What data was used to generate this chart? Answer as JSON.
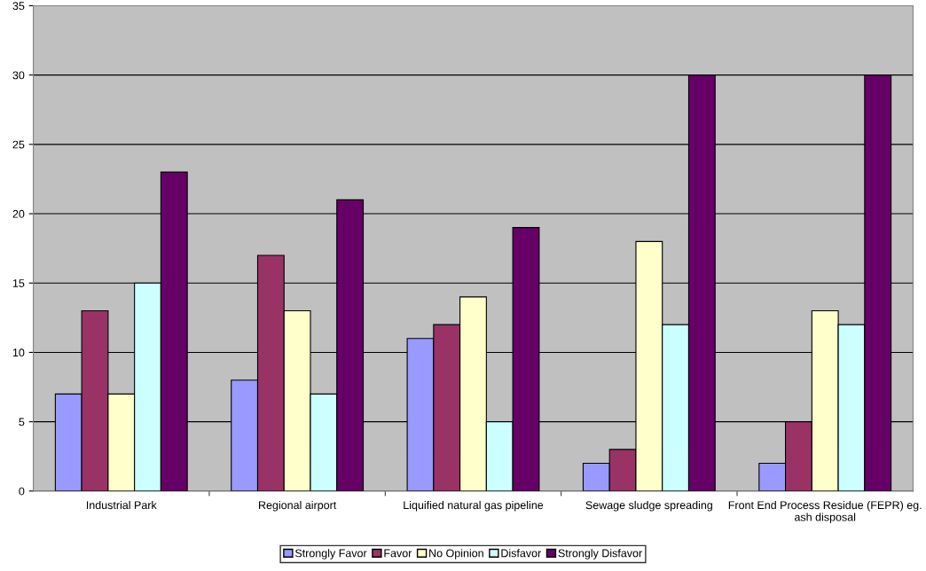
{
  "chart_data": {
    "type": "bar",
    "categories": [
      "Industrial Park",
      "Regional airport",
      "Liquified natural gas pipeline",
      "Sewage sludge spreading",
      "Front End Process Residue (FEPR) eg. ash disposal"
    ],
    "series": [
      {
        "name": "Strongly Favor",
        "color": "#9999ff",
        "values": [
          7,
          8,
          11,
          2,
          2
        ]
      },
      {
        "name": "Favor",
        "color": "#993366",
        "values": [
          13,
          17,
          12,
          3,
          5
        ]
      },
      {
        "name": "No Opinion",
        "color": "#ffffcc",
        "values": [
          7,
          13,
          14,
          18,
          13
        ]
      },
      {
        "name": "Disfavor",
        "color": "#ccffff",
        "values": [
          15,
          7,
          5,
          12,
          12
        ]
      },
      {
        "name": "Strongly Disfavor",
        "color": "#660066",
        "values": [
          23,
          21,
          19,
          30,
          30
        ]
      }
    ],
    "ylim": [
      0,
      35
    ],
    "yticks": [
      0,
      5,
      10,
      15,
      20,
      25,
      30,
      35
    ],
    "grid": "y",
    "legend": "bottom"
  }
}
